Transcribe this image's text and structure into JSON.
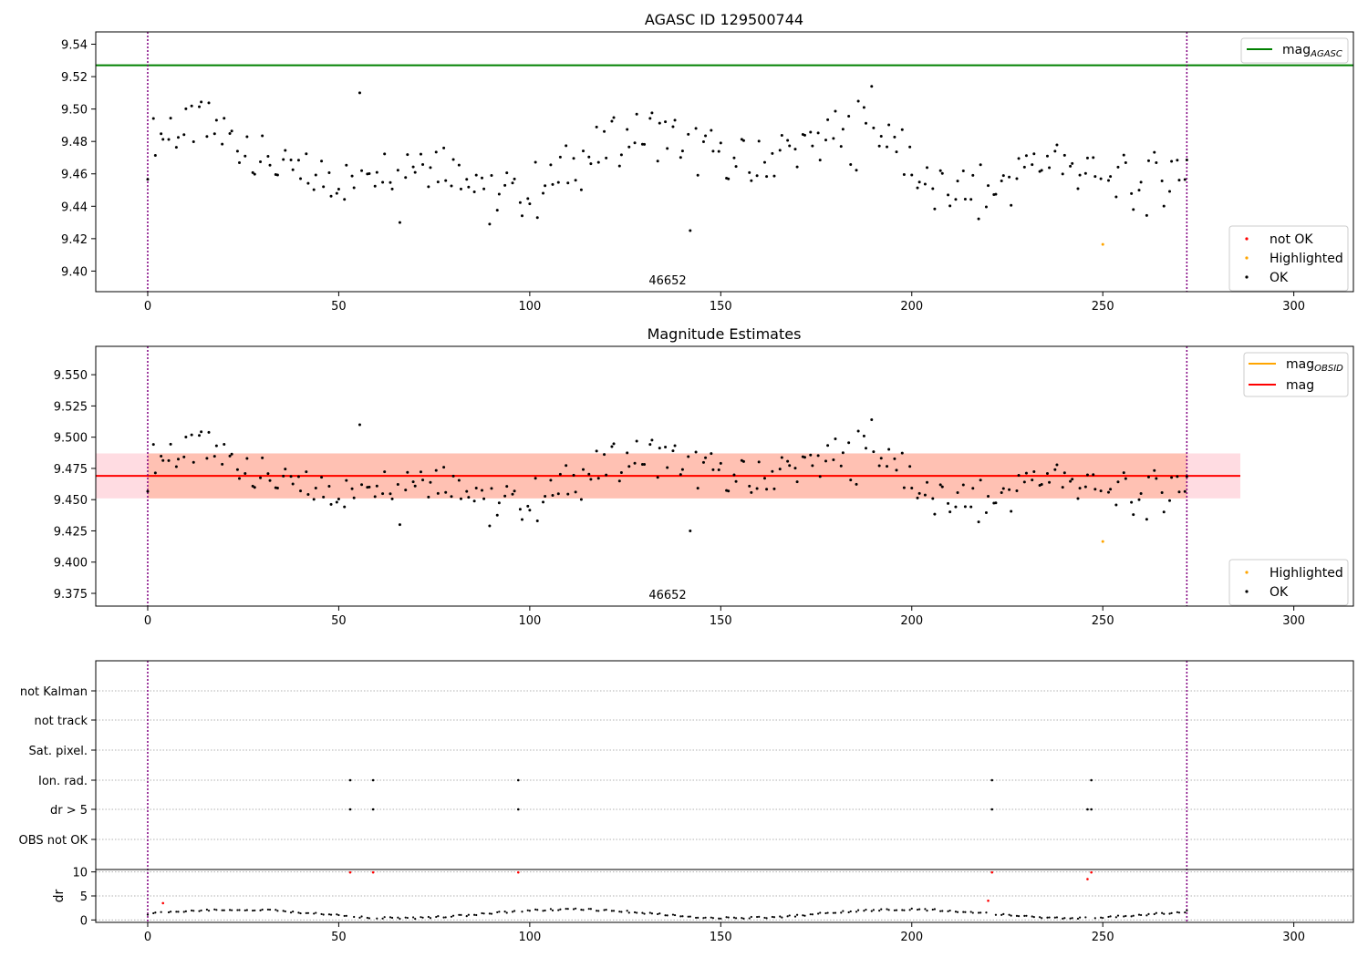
{
  "chart_data": [
    {
      "type": "scatter",
      "title": "AGASC ID 129500744",
      "obsid_label": "46652",
      "xlim": [
        -13.6,
        315.6
      ],
      "ylim": [
        9.3873,
        9.5476
      ],
      "xticks": [
        "0",
        "50",
        "100",
        "150",
        "200",
        "250",
        "300"
      ],
      "xtick_values": [
        0,
        50,
        100,
        150,
        200,
        250,
        300
      ],
      "yticks": [
        "9.40",
        "9.42",
        "9.44",
        "9.46",
        "9.48",
        "9.50",
        "9.52",
        "9.54"
      ],
      "ytick_values": [
        9.4,
        9.42,
        9.44,
        9.46,
        9.48,
        9.5,
        9.52,
        9.54
      ],
      "mag_agasc": 9.527,
      "vlines": [
        0,
        272
      ],
      "legend_line": {
        "label_main": "mag",
        "label_sub": "AGASC",
        "color": "#008000"
      },
      "legend_markers": [
        {
          "label": "not OK",
          "color": "#ff0000"
        },
        {
          "label": "Highlighted",
          "color": "#ffa500"
        },
        {
          "label": "OK",
          "color": "#000000"
        }
      ]
    },
    {
      "type": "scatter",
      "title": "Magnitude Estimates",
      "obsid_label": "46652",
      "xlim": [
        -13.6,
        315.6
      ],
      "ylim": [
        9.3648,
        9.5727
      ],
      "xticks": [
        "0",
        "50",
        "100",
        "150",
        "200",
        "250",
        "300"
      ],
      "xtick_values": [
        0,
        50,
        100,
        150,
        200,
        250,
        300
      ],
      "yticks": [
        "9.375",
        "9.400",
        "9.425",
        "9.450",
        "9.475",
        "9.500",
        "9.525",
        "9.550"
      ],
      "ytick_values": [
        9.375,
        9.4,
        9.425,
        9.45,
        9.475,
        9.5,
        9.525,
        9.55
      ],
      "mag": 9.469,
      "mag_obsid": 9.469,
      "band_mag": [
        9.451,
        9.487
      ],
      "band_obsid": [
        9.451,
        9.487
      ],
      "band_mag_x": [
        -13.6,
        286
      ],
      "band_obsid_x": [
        0,
        272
      ],
      "vlines": [
        0,
        272
      ],
      "legend_lines": [
        {
          "label_main": "mag",
          "label_sub": "OBSID",
          "color": "#ffa500"
        },
        {
          "label_main": "mag",
          "label_sub": "",
          "color": "#ff0000"
        }
      ],
      "legend_markers": [
        {
          "label": "Highlighted",
          "color": "#ffa500"
        },
        {
          "label": "OK",
          "color": "#000000"
        }
      ]
    },
    {
      "type": "scatter",
      "flag_categories": [
        "not Kalman",
        "not track",
        "Sat. pixel.",
        "Ion. rad.",
        "dr > 5",
        "OBS not OK"
      ],
      "flags": {
        "Ion. rad.": [
          53,
          59,
          97,
          221,
          247
        ],
        "dr > 5": [
          53,
          59,
          97,
          221,
          246,
          247
        ]
      },
      "dr_ylabel": "dr",
      "dr_yticks": [
        "0",
        "5",
        "10"
      ],
      "dr_ytick_values": [
        0,
        5,
        10
      ],
      "dr_ylim": [
        -0.5,
        10.5
      ],
      "dr_high": [
        [
          4,
          3.5
        ],
        [
          53,
          9.9
        ],
        [
          59,
          9.9
        ],
        [
          97,
          9.9
        ],
        [
          220,
          4.0
        ],
        [
          221,
          9.9
        ],
        [
          246,
          8.5
        ],
        [
          247,
          9.9
        ]
      ],
      "xlim": [
        -13.6,
        315.6
      ],
      "xticks": [
        "0",
        "50",
        "100",
        "150",
        "200",
        "250",
        "300"
      ],
      "xtick_values": [
        0,
        50,
        100,
        150,
        200,
        250,
        300
      ],
      "vlines": [
        0,
        272
      ]
    }
  ],
  "colors": {
    "ok": "#000000",
    "not_ok": "#ff0000",
    "highlighted": "#ffa500",
    "agasc_line": "#008000",
    "mag_line": "#ff0000",
    "obsid_line": "#ffa500",
    "vline": "#800080",
    "band_mag": "#ffc0cb",
    "band_obsid": "#ffa07a"
  }
}
